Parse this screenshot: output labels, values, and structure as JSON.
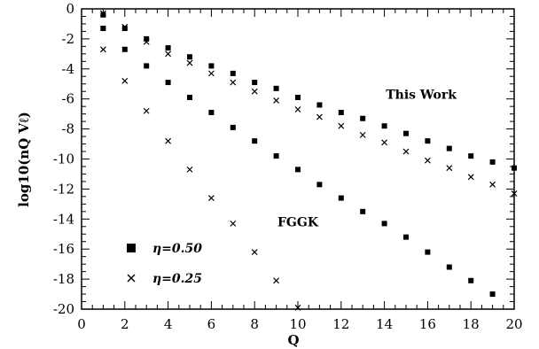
{
  "chart_data": {
    "type": "scatter",
    "title": "",
    "xlabel": "Q",
    "ylabel": "log10(nQ Vℓ)",
    "xlim": [
      0,
      20
    ],
    "ylim": [
      -20,
      0
    ],
    "xticks": [
      0,
      2,
      4,
      6,
      8,
      10,
      12,
      14,
      16,
      18,
      20
    ],
    "yticks": [
      0,
      -2,
      -4,
      -6,
      -8,
      -10,
      -12,
      -14,
      -16,
      -18,
      -20
    ],
    "x_tick_labels": [
      "0",
      "2",
      "4",
      "6",
      "8",
      "10",
      "12",
      "14",
      "16",
      "18",
      "20"
    ],
    "y_tick_labels": [
      "0",
      "-2",
      "-4",
      "-6",
      "-8",
      "-10",
      "-12",
      "-14",
      "-16",
      "-18",
      "-20"
    ],
    "grid": false,
    "legend": {
      "placement": "bottom-left",
      "entries": [
        {
          "marker": "square",
          "label": "η=0.50"
        },
        {
          "marker": "x",
          "label": "η=0.25"
        }
      ]
    },
    "annotations": [
      {
        "text": "This Work",
        "x": 15.7,
        "y": -5.7
      },
      {
        "text": "FGGK",
        "x": 10.0,
        "y": -14.2
      }
    ],
    "series": [
      {
        "marker": "square",
        "group": "This Work",
        "x": [
          1,
          2,
          3,
          4,
          5,
          6,
          7,
          8,
          9,
          10,
          11,
          12,
          13,
          14,
          15,
          16,
          17,
          18,
          19,
          20
        ],
        "y": [
          -0.4,
          -1.3,
          -2.0,
          -2.6,
          -3.2,
          -3.8,
          -4.3,
          -4.9,
          -5.3,
          -5.9,
          -6.4,
          -6.9,
          -7.3,
          -7.8,
          -8.3,
          -8.8,
          -9.3,
          -9.8,
          -10.2,
          -10.6
        ]
      },
      {
        "marker": "x",
        "group": "This Work",
        "x": [
          1,
          2,
          3,
          4,
          5,
          6,
          7,
          8,
          9,
          10,
          11,
          12,
          13,
          14,
          15,
          16,
          17,
          18,
          19,
          20
        ],
        "y": [
          -0.3,
          -1.2,
          -2.2,
          -3.0,
          -3.6,
          -4.3,
          -4.9,
          -5.5,
          -6.1,
          -6.7,
          -7.2,
          -7.8,
          -8.4,
          -8.9,
          -9.5,
          -10.1,
          -10.6,
          -11.2,
          -11.7,
          -12.3
        ]
      },
      {
        "marker": "square",
        "group": "FGGK",
        "x": [
          1,
          2,
          3,
          4,
          5,
          6,
          7,
          8,
          9,
          10,
          11,
          12,
          13,
          14,
          15,
          16,
          17,
          18,
          19
        ],
        "y": [
          -1.3,
          -2.7,
          -3.8,
          -4.9,
          -5.9,
          -6.9,
          -7.9,
          -8.8,
          -9.8,
          -10.7,
          -11.7,
          -12.6,
          -13.5,
          -14.3,
          -15.2,
          -16.2,
          -17.2,
          -18.1,
          -19.0
        ]
      },
      {
        "marker": "x",
        "group": "FGGK",
        "x": [
          1,
          2,
          3,
          4,
          5,
          6,
          7,
          8,
          9,
          10
        ],
        "y": [
          -2.7,
          -4.8,
          -6.8,
          -8.8,
          -10.7,
          -12.6,
          -14.3,
          -16.2,
          -18.1,
          -19.9
        ]
      }
    ]
  }
}
